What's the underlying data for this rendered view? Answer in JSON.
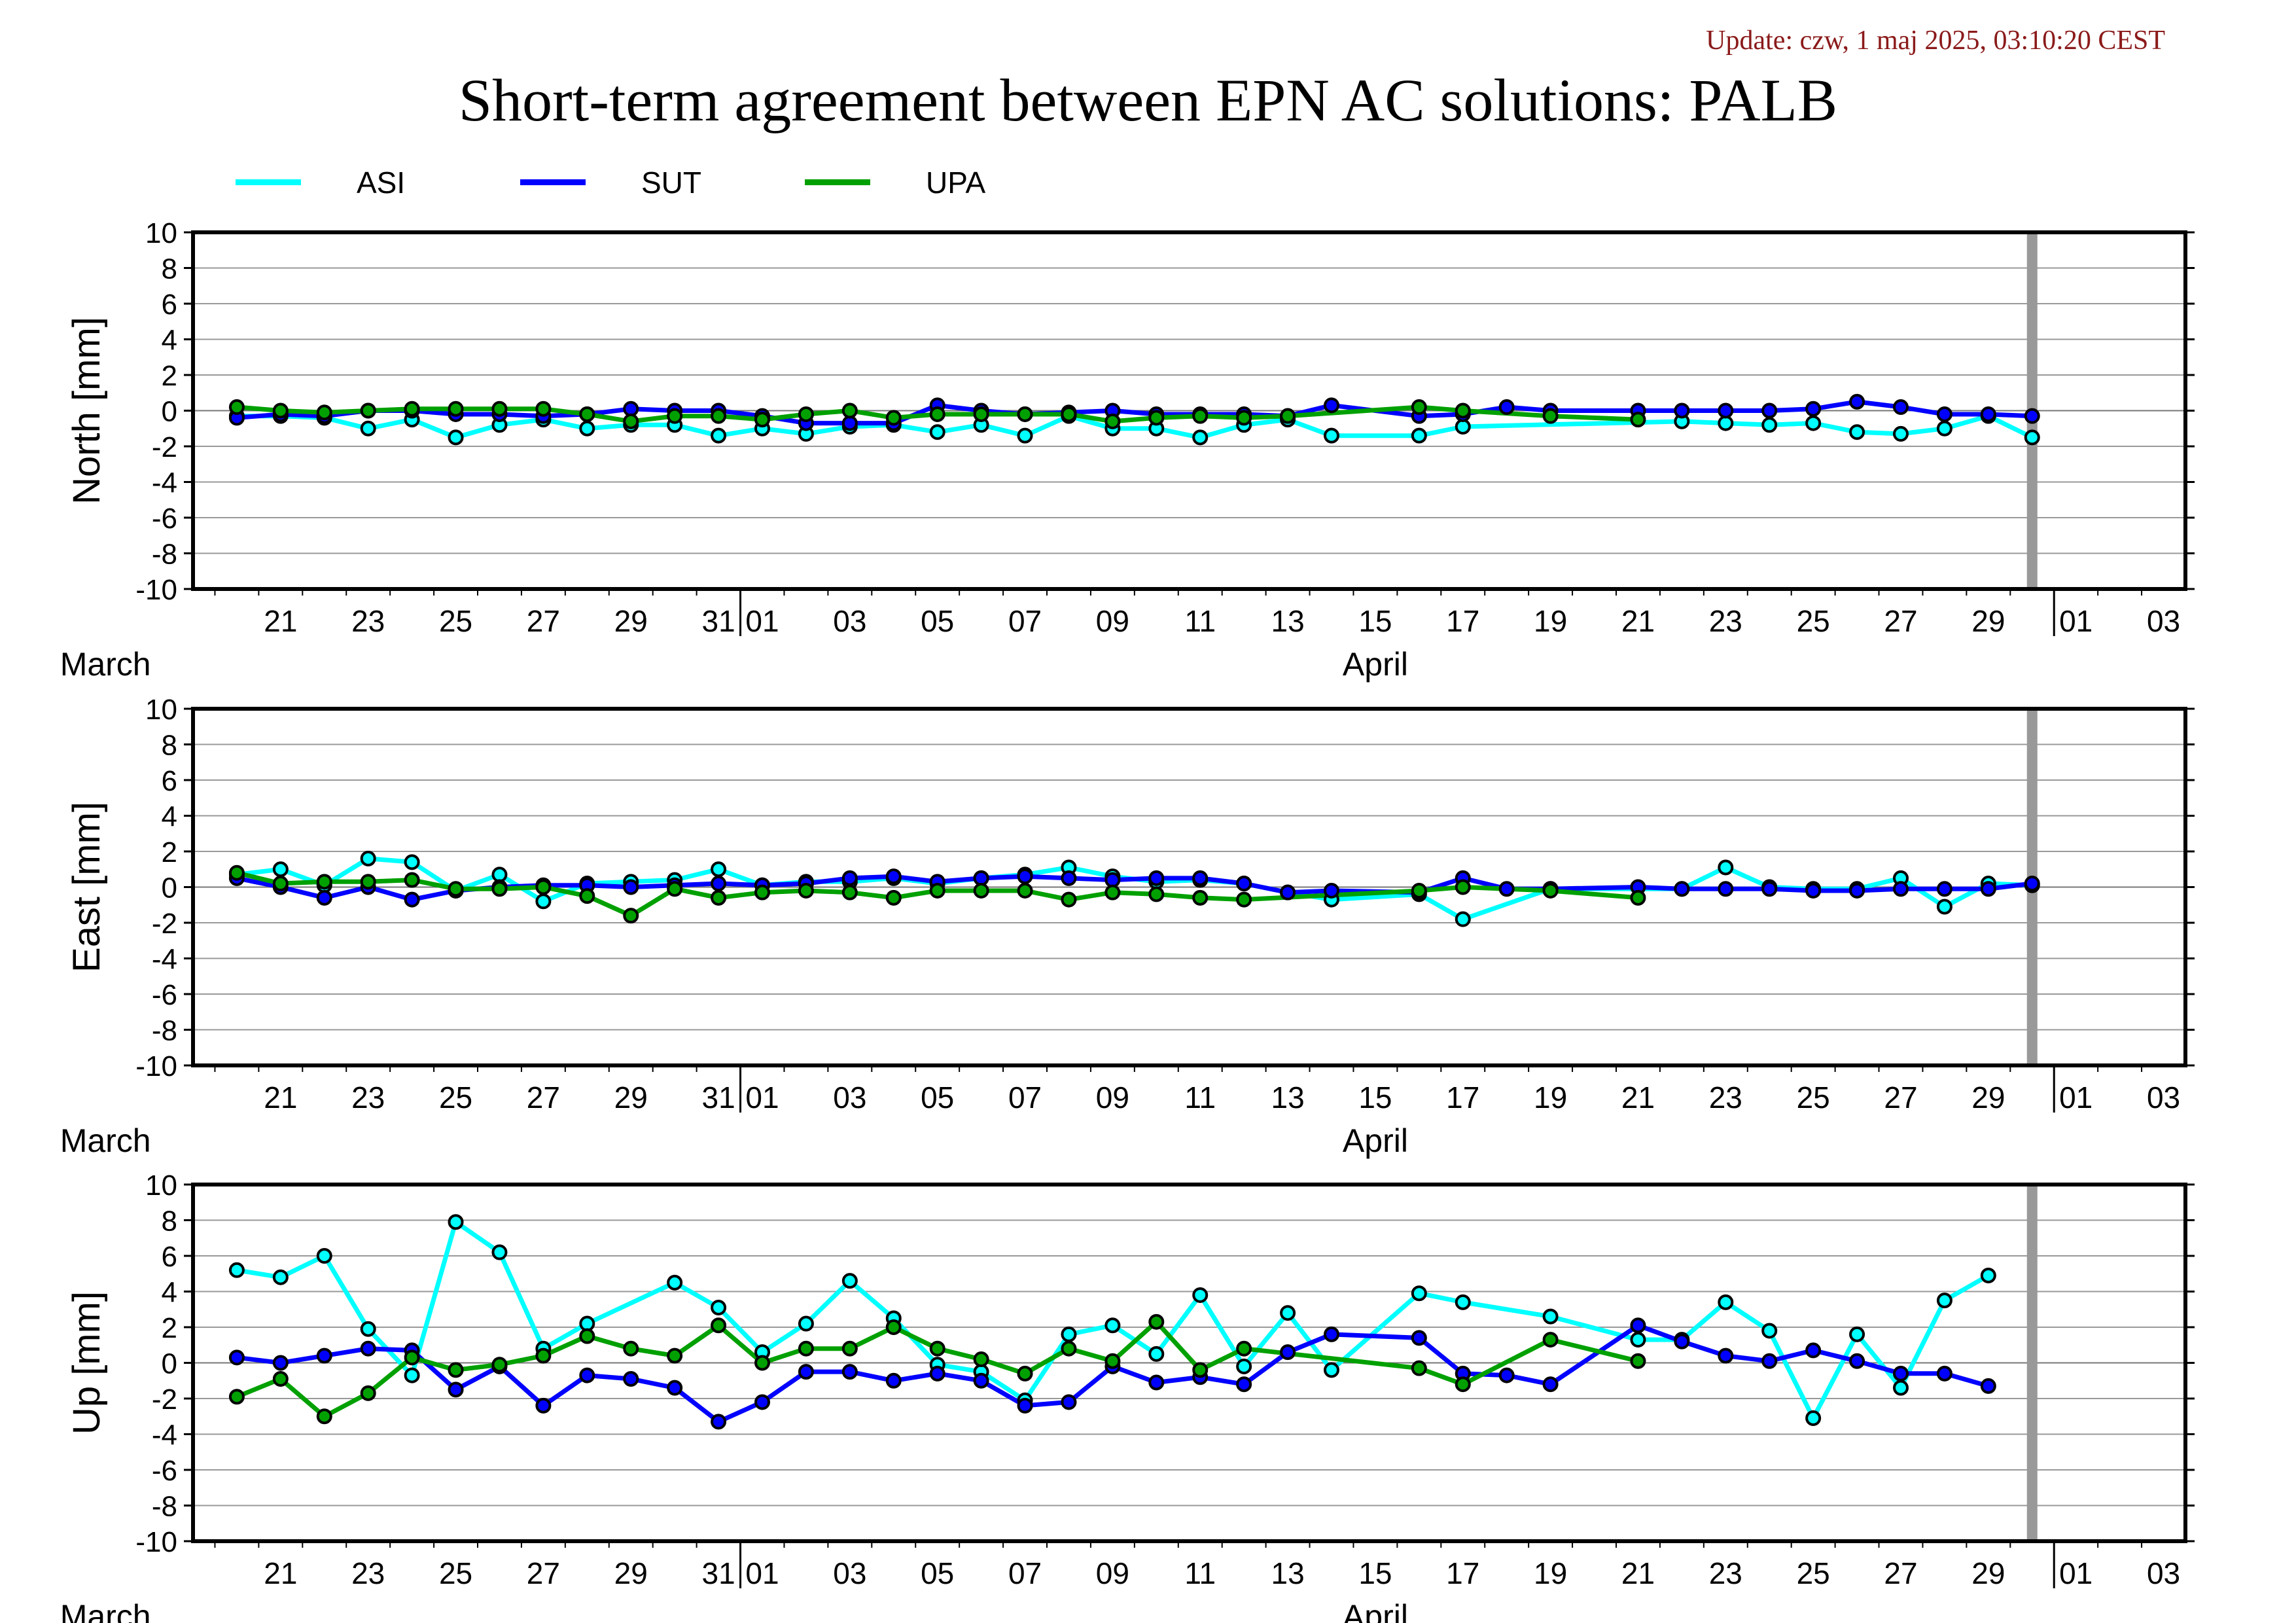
{
  "update": "Update: czw, 1 maj 2025, 03:10:20 CEST",
  "title": "Short-term agreement between EPN AC solutions: PALB",
  "colors": {
    "ASI": "#00ffff",
    "SUT": "#0000ff",
    "UPA": "#00a000",
    "marker_line": "#000000",
    "today_bar": "#999999"
  },
  "legend": [
    {
      "name": "ASI",
      "color": "#00ffff"
    },
    {
      "name": "SUT",
      "color": "#0000ff"
    },
    {
      "name": "UPA",
      "color": "#00a000"
    }
  ],
  "chart_data": [
    {
      "type": "line",
      "ylabel": "North [mm]",
      "ylim": [
        -10,
        10
      ],
      "yticks": [
        10,
        8,
        6,
        4,
        2,
        0,
        -2,
        -4,
        -6,
        -8,
        -10
      ],
      "xlim": [
        "2025-03-19T12:00",
        "2025-05-04T00:00"
      ],
      "day_labels": [
        "21",
        "23",
        "25",
        "27",
        "29",
        "31",
        "01",
        "03",
        "05",
        "07",
        "09",
        "11",
        "13",
        "15",
        "17",
        "19",
        "21",
        "23",
        "25",
        "27",
        "29",
        "01",
        "03"
      ],
      "month_labels": [
        "March",
        "April"
      ],
      "today_marker": "2025-04-30",
      "grid": true,
      "series": [
        {
          "name": "ASI",
          "dates": [
            "2025-03-20",
            "2025-03-21",
            "2025-03-22",
            "2025-03-23",
            "2025-03-24",
            "2025-03-25",
            "2025-03-26",
            "2025-03-27",
            "2025-03-28",
            "2025-03-29",
            "2025-03-30",
            "2025-03-31",
            "2025-04-01",
            "2025-04-02",
            "2025-04-03",
            "2025-04-04",
            "2025-04-05",
            "2025-04-06",
            "2025-04-07",
            "2025-04-08",
            "2025-04-09",
            "2025-04-10",
            "2025-04-11",
            "2025-04-12",
            "2025-04-13",
            "2025-04-14",
            "2025-04-16",
            "2025-04-17",
            "2025-04-22",
            "2025-04-23",
            "2025-04-24",
            "2025-04-25",
            "2025-04-26",
            "2025-04-27",
            "2025-04-28",
            "2025-04-29",
            "2025-04-30"
          ],
          "values": [
            -0.3,
            -0.3,
            -0.4,
            -1.0,
            -0.5,
            -1.5,
            -0.8,
            -0.5,
            -1.0,
            -0.8,
            -0.8,
            -1.4,
            -1.0,
            -1.3,
            -0.9,
            -0.8,
            -1.2,
            -0.8,
            -1.4,
            -0.3,
            -1.0,
            -1.0,
            -1.5,
            -0.8,
            -0.5,
            -1.4,
            -1.4,
            -0.9,
            -0.6,
            -0.7,
            -0.8,
            -0.7,
            -1.2,
            -1.3,
            -1.0,
            -0.3,
            -1.5
          ]
        },
        {
          "name": "SUT",
          "dates": [
            "2025-03-20",
            "2025-03-21",
            "2025-03-22",
            "2025-03-23",
            "2025-03-24",
            "2025-03-25",
            "2025-03-26",
            "2025-03-27",
            "2025-03-28",
            "2025-03-29",
            "2025-03-30",
            "2025-03-31",
            "2025-04-01",
            "2025-04-02",
            "2025-04-03",
            "2025-04-04",
            "2025-04-05",
            "2025-04-06",
            "2025-04-07",
            "2025-04-08",
            "2025-04-09",
            "2025-04-10",
            "2025-04-11",
            "2025-04-12",
            "2025-04-13",
            "2025-04-14",
            "2025-04-16",
            "2025-04-17",
            "2025-04-18",
            "2025-04-19",
            "2025-04-21",
            "2025-04-22",
            "2025-04-23",
            "2025-04-24",
            "2025-04-25",
            "2025-04-26",
            "2025-04-27",
            "2025-04-28",
            "2025-04-29",
            "2025-04-30"
          ],
          "values": [
            -0.4,
            -0.2,
            -0.3,
            0.0,
            0.0,
            -0.2,
            -0.2,
            -0.3,
            -0.2,
            0.1,
            0.0,
            0.0,
            -0.3,
            -0.7,
            -0.7,
            -0.7,
            0.3,
            0.0,
            -0.2,
            -0.1,
            0.0,
            -0.2,
            -0.2,
            -0.2,
            -0.3,
            0.3,
            -0.3,
            -0.2,
            0.2,
            0.0,
            0.0,
            0.0,
            0.0,
            0.0,
            0.1,
            0.5,
            0.2,
            -0.2,
            -0.2,
            -0.3
          ]
        },
        {
          "name": "UPA",
          "dates": [
            "2025-03-20",
            "2025-03-21",
            "2025-03-22",
            "2025-03-23",
            "2025-03-24",
            "2025-03-25",
            "2025-03-26",
            "2025-03-27",
            "2025-03-28",
            "2025-03-29",
            "2025-03-30",
            "2025-03-31",
            "2025-04-01",
            "2025-04-02",
            "2025-04-03",
            "2025-04-04",
            "2025-04-05",
            "2025-04-06",
            "2025-04-07",
            "2025-04-08",
            "2025-04-09",
            "2025-04-10",
            "2025-04-11",
            "2025-04-12",
            "2025-04-13",
            "2025-04-16",
            "2025-04-17",
            "2025-04-19",
            "2025-04-21"
          ],
          "values": [
            0.2,
            0.0,
            -0.1,
            0.0,
            0.1,
            0.1,
            0.1,
            0.1,
            -0.2,
            -0.6,
            -0.3,
            -0.3,
            -0.5,
            -0.2,
            0.0,
            -0.4,
            -0.2,
            -0.2,
            -0.2,
            -0.2,
            -0.6,
            -0.4,
            -0.3,
            -0.4,
            -0.3,
            0.2,
            0.0,
            -0.3,
            -0.5
          ]
        }
      ]
    },
    {
      "type": "line",
      "ylabel": "East [mm]",
      "ylim": [
        -10,
        10
      ],
      "yticks": [
        10,
        8,
        6,
        4,
        2,
        0,
        -2,
        -4,
        -6,
        -8,
        -10
      ],
      "xlim": [
        "2025-03-19T12:00",
        "2025-05-04T00:00"
      ],
      "day_labels": [
        "21",
        "23",
        "25",
        "27",
        "29",
        "31",
        "01",
        "03",
        "05",
        "07",
        "09",
        "11",
        "13",
        "15",
        "17",
        "19",
        "21",
        "23",
        "25",
        "27",
        "29",
        "01",
        "03"
      ],
      "month_labels": [
        "March",
        "April"
      ],
      "today_marker": "2025-04-30",
      "grid": true,
      "series": [
        {
          "name": "ASI",
          "dates": [
            "2025-03-20",
            "2025-03-21",
            "2025-03-22",
            "2025-03-23",
            "2025-03-24",
            "2025-03-25",
            "2025-03-26",
            "2025-03-27",
            "2025-03-28",
            "2025-03-29",
            "2025-03-30",
            "2025-03-31",
            "2025-04-01",
            "2025-04-02",
            "2025-04-03",
            "2025-04-04",
            "2025-04-05",
            "2025-04-06",
            "2025-04-07",
            "2025-04-08",
            "2025-04-09",
            "2025-04-10",
            "2025-04-11",
            "2025-04-12",
            "2025-04-13",
            "2025-04-14",
            "2025-04-16",
            "2025-04-17",
            "2025-04-19",
            "2025-04-22",
            "2025-04-23",
            "2025-04-24",
            "2025-04-25",
            "2025-04-26",
            "2025-04-27",
            "2025-04-28",
            "2025-04-29",
            "2025-04-30"
          ],
          "values": [
            0.7,
            1.0,
            0.1,
            1.6,
            1.4,
            -0.2,
            0.7,
            -0.8,
            0.2,
            0.3,
            0.4,
            1.0,
            0.1,
            0.3,
            0.3,
            0.5,
            0.2,
            0.5,
            0.7,
            1.1,
            0.6,
            0.3,
            0.4,
            0.2,
            -0.3,
            -0.7,
            -0.4,
            -1.8,
            -0.1,
            -0.1,
            1.1,
            0.0,
            -0.1,
            -0.1,
            0.5,
            -1.1,
            0.2,
            0.1
          ]
        },
        {
          "name": "SUT",
          "dates": [
            "2025-03-20",
            "2025-03-21",
            "2025-03-22",
            "2025-03-23",
            "2025-03-24",
            "2025-03-25",
            "2025-03-26",
            "2025-03-27",
            "2025-03-28",
            "2025-03-29",
            "2025-03-30",
            "2025-03-31",
            "2025-04-01",
            "2025-04-02",
            "2025-04-03",
            "2025-04-04",
            "2025-04-05",
            "2025-04-06",
            "2025-04-07",
            "2025-04-08",
            "2025-04-09",
            "2025-04-10",
            "2025-04-11",
            "2025-04-12",
            "2025-04-13",
            "2025-04-14",
            "2025-04-16",
            "2025-04-17",
            "2025-04-18",
            "2025-04-19",
            "2025-04-21",
            "2025-04-22",
            "2025-04-23",
            "2025-04-24",
            "2025-04-25",
            "2025-04-26",
            "2025-04-27",
            "2025-04-28",
            "2025-04-29",
            "2025-04-30"
          ],
          "values": [
            0.5,
            0.0,
            -0.6,
            0.0,
            -0.7,
            -0.2,
            0.0,
            0.1,
            0.1,
            0.0,
            0.1,
            0.2,
            0.1,
            0.2,
            0.5,
            0.6,
            0.3,
            0.5,
            0.6,
            0.5,
            0.4,
            0.5,
            0.5,
            0.2,
            -0.3,
            -0.2,
            -0.3,
            0.5,
            -0.1,
            -0.1,
            0.0,
            -0.1,
            -0.1,
            -0.1,
            -0.2,
            -0.2,
            -0.1,
            -0.1,
            -0.1,
            0.2
          ]
        },
        {
          "name": "UPA",
          "dates": [
            "2025-03-20",
            "2025-03-21",
            "2025-03-22",
            "2025-03-23",
            "2025-03-24",
            "2025-03-25",
            "2025-03-26",
            "2025-03-27",
            "2025-03-28",
            "2025-03-29",
            "2025-03-30",
            "2025-03-31",
            "2025-04-01",
            "2025-04-02",
            "2025-04-03",
            "2025-04-04",
            "2025-04-05",
            "2025-04-06",
            "2025-04-07",
            "2025-04-08",
            "2025-04-09",
            "2025-04-10",
            "2025-04-11",
            "2025-04-12",
            "2025-04-16",
            "2025-04-17",
            "2025-04-19",
            "2025-04-21"
          ],
          "values": [
            0.8,
            0.2,
            0.3,
            0.3,
            0.4,
            -0.1,
            -0.1,
            0.0,
            -0.5,
            -1.6,
            -0.1,
            -0.6,
            -0.3,
            -0.2,
            -0.3,
            -0.6,
            -0.2,
            -0.2,
            -0.2,
            -0.7,
            -0.3,
            -0.4,
            -0.6,
            -0.7,
            -0.2,
            0.0,
            -0.2,
            -0.6
          ]
        }
      ]
    },
    {
      "type": "line",
      "ylabel": "Up [mm]",
      "ylim": [
        -10,
        10
      ],
      "yticks": [
        10,
        8,
        6,
        4,
        2,
        0,
        -2,
        -4,
        -6,
        -8,
        -10
      ],
      "xlim": [
        "2025-03-19T12:00",
        "2025-05-04T00:00"
      ],
      "day_labels": [
        "21",
        "23",
        "25",
        "27",
        "29",
        "31",
        "01",
        "03",
        "05",
        "07",
        "09",
        "11",
        "13",
        "15",
        "17",
        "19",
        "21",
        "23",
        "25",
        "27",
        "29",
        "01",
        "03"
      ],
      "month_labels": [
        "March",
        "April"
      ],
      "today_marker": "2025-04-30",
      "grid": true,
      "series": [
        {
          "name": "ASI",
          "dates": [
            "2025-03-20",
            "2025-03-21",
            "2025-03-22",
            "2025-03-23",
            "2025-03-24",
            "2025-03-25",
            "2025-03-26",
            "2025-03-27",
            "2025-03-28",
            "2025-03-30",
            "2025-03-31",
            "2025-04-01",
            "2025-04-02",
            "2025-04-03",
            "2025-04-04",
            "2025-04-05",
            "2025-04-06",
            "2025-04-07",
            "2025-04-08",
            "2025-04-09",
            "2025-04-10",
            "2025-04-11",
            "2025-04-12",
            "2025-04-13",
            "2025-04-14",
            "2025-04-16",
            "2025-04-17",
            "2025-04-19",
            "2025-04-21",
            "2025-04-22",
            "2025-04-23",
            "2025-04-24",
            "2025-04-25",
            "2025-04-26",
            "2025-04-27",
            "2025-04-28",
            "2025-04-29"
          ],
          "values": [
            5.2,
            4.8,
            6.0,
            1.9,
            -0.7,
            7.9,
            6.2,
            0.8,
            2.2,
            4.5,
            3.1,
            0.6,
            2.2,
            4.6,
            2.5,
            -0.1,
            -0.5,
            -2.1,
            1.6,
            2.1,
            0.5,
            3.8,
            -0.2,
            2.8,
            -0.4,
            3.9,
            3.4,
            2.6,
            1.3,
            1.3,
            3.4,
            1.8,
            -3.1,
            1.6,
            -1.4,
            3.5,
            4.9
          ]
        },
        {
          "name": "SUT",
          "dates": [
            "2025-03-20",
            "2025-03-21",
            "2025-03-22",
            "2025-03-23",
            "2025-03-24",
            "2025-03-25",
            "2025-03-26",
            "2025-03-27",
            "2025-03-28",
            "2025-03-29",
            "2025-03-30",
            "2025-03-31",
            "2025-04-01",
            "2025-04-02",
            "2025-04-03",
            "2025-04-04",
            "2025-04-05",
            "2025-04-06",
            "2025-04-07",
            "2025-04-08",
            "2025-04-09",
            "2025-04-10",
            "2025-04-11",
            "2025-04-12",
            "2025-04-13",
            "2025-04-14",
            "2025-04-16",
            "2025-04-17",
            "2025-04-18",
            "2025-04-19",
            "2025-04-21",
            "2025-04-22",
            "2025-04-23",
            "2025-04-24",
            "2025-04-25",
            "2025-04-26",
            "2025-04-27",
            "2025-04-28",
            "2025-04-29"
          ],
          "values": [
            0.3,
            0.0,
            0.4,
            0.8,
            0.7,
            -1.5,
            -0.2,
            -2.4,
            -0.7,
            -0.9,
            -1.4,
            -3.3,
            -2.2,
            -0.5,
            -0.5,
            -1.0,
            -0.6,
            -1.0,
            -2.4,
            -2.2,
            -0.2,
            -1.1,
            -0.8,
            -1.2,
            0.6,
            1.6,
            1.4,
            -0.6,
            -0.7,
            -1.2,
            2.1,
            1.2,
            0.4,
            0.1,
            0.7,
            0.1,
            -0.6,
            -0.6,
            -1.3
          ]
        },
        {
          "name": "UPA",
          "dates": [
            "2025-03-20",
            "2025-03-21",
            "2025-03-22",
            "2025-03-23",
            "2025-03-24",
            "2025-03-25",
            "2025-03-26",
            "2025-03-27",
            "2025-03-28",
            "2025-03-29",
            "2025-03-30",
            "2025-03-31",
            "2025-04-01",
            "2025-04-02",
            "2025-04-03",
            "2025-04-04",
            "2025-04-05",
            "2025-04-06",
            "2025-04-07",
            "2025-04-08",
            "2025-04-09",
            "2025-04-10",
            "2025-04-11",
            "2025-04-12",
            "2025-04-16",
            "2025-04-17",
            "2025-04-19",
            "2025-04-21"
          ],
          "values": [
            -1.9,
            -0.9,
            -3.0,
            -1.7,
            0.3,
            -0.4,
            -0.1,
            0.4,
            1.5,
            0.8,
            0.4,
            2.1,
            0.0,
            0.8,
            0.8,
            2.0,
            0.8,
            0.2,
            -0.6,
            0.8,
            0.1,
            2.3,
            -0.4,
            0.8,
            -0.3,
            -1.2,
            1.3,
            0.1
          ]
        }
      ]
    }
  ]
}
